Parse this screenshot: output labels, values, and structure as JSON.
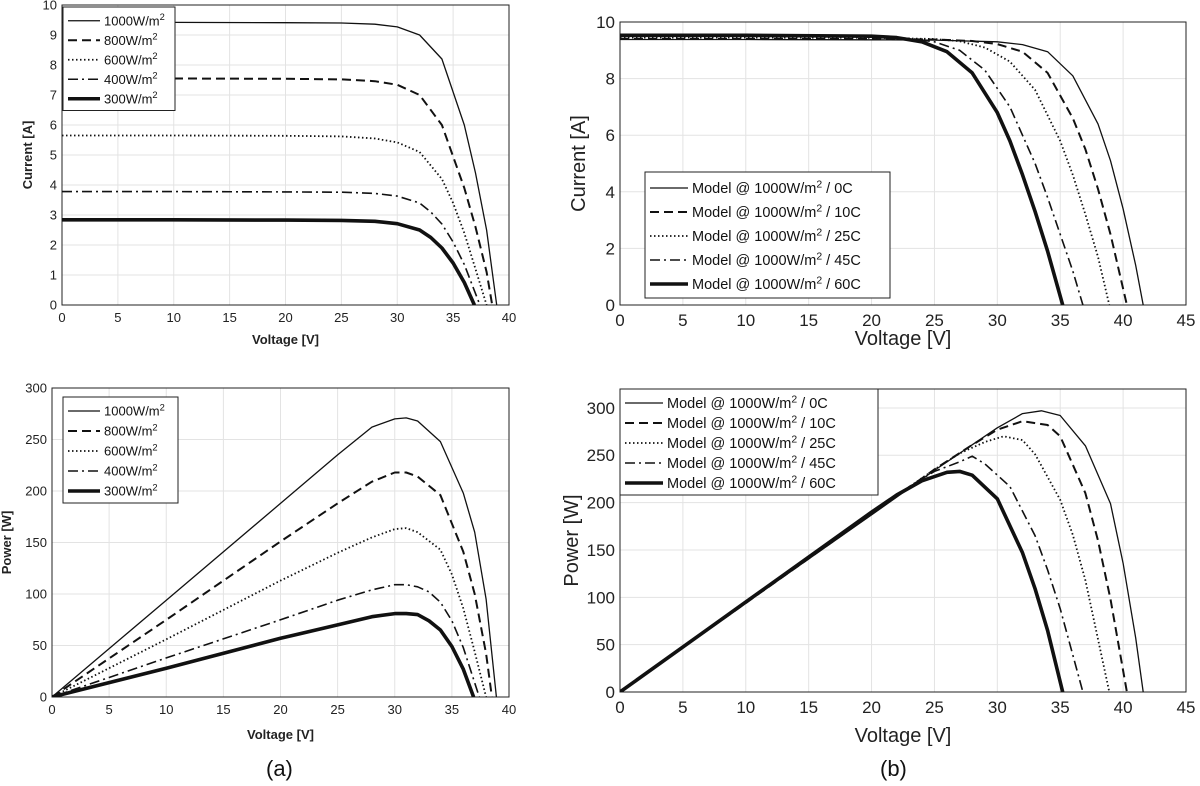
{
  "captions": {
    "a": "(a)",
    "b": "(b)"
  },
  "chart_data": [
    {
      "id": "a-current",
      "type": "line",
      "title": "",
      "xlabel": "Voltage [V]",
      "ylabel": "Current [A]",
      "xlim": [
        0,
        40
      ],
      "ylim": [
        0,
        10
      ],
      "xticks": [
        0,
        5,
        10,
        15,
        20,
        25,
        30,
        35,
        40
      ],
      "yticks": [
        0,
        1,
        2,
        3,
        4,
        5,
        6,
        7,
        8,
        9,
        10
      ],
      "grid": true,
      "legend_position": "top-left",
      "series": [
        {
          "name": "1000W/m2",
          "isc": 9.42,
          "voc": 38.9,
          "style": "solid",
          "x": [
            0,
            10,
            20,
            25,
            28,
            30,
            32,
            34,
            36,
            37,
            38,
            38.9
          ],
          "y": [
            9.42,
            9.42,
            9.41,
            9.4,
            9.36,
            9.27,
            9.0,
            8.2,
            6.0,
            4.4,
            2.5,
            0
          ]
        },
        {
          "name": "800W/m2",
          "isc": 7.55,
          "voc": 38.5,
          "style": "dashed",
          "x": [
            0,
            10,
            20,
            25,
            28,
            30,
            32,
            34,
            36,
            37,
            38,
            38.5
          ],
          "y": [
            7.55,
            7.55,
            7.54,
            7.52,
            7.46,
            7.34,
            7.0,
            6.0,
            3.9,
            2.6,
            1.1,
            0
          ]
        },
        {
          "name": "600W/m2",
          "isc": 5.65,
          "voc": 38.0,
          "style": "dotted",
          "x": [
            0,
            10,
            20,
            25,
            28,
            30,
            32,
            34,
            35,
            36,
            37,
            38.0
          ],
          "y": [
            5.65,
            5.65,
            5.64,
            5.62,
            5.55,
            5.42,
            5.1,
            4.2,
            3.4,
            2.4,
            1.2,
            0
          ]
        },
        {
          "name": "400W/m2",
          "isc": 3.78,
          "voc": 37.4,
          "style": "dashdot",
          "x": [
            0,
            10,
            20,
            25,
            28,
            30,
            32,
            33,
            34,
            35,
            36,
            37.4
          ],
          "y": [
            3.78,
            3.78,
            3.77,
            3.76,
            3.72,
            3.63,
            3.4,
            3.1,
            2.7,
            2.1,
            1.35,
            0
          ]
        },
        {
          "name": "300W/m2",
          "isc": 2.84,
          "voc": 36.9,
          "style": "thick",
          "x": [
            0,
            10,
            20,
            25,
            28,
            30,
            32,
            33,
            34,
            35,
            36,
            36.9
          ],
          "y": [
            2.84,
            2.84,
            2.83,
            2.82,
            2.79,
            2.71,
            2.5,
            2.25,
            1.9,
            1.4,
            0.75,
            0
          ]
        }
      ]
    },
    {
      "id": "b-current",
      "type": "line",
      "title": "",
      "xlabel": "Voltage [V]",
      "ylabel": "Current [A]",
      "xlim": [
        0,
        45
      ],
      "ylim": [
        0,
        10
      ],
      "xticks": [
        0,
        5,
        10,
        15,
        20,
        25,
        30,
        35,
        40,
        45
      ],
      "yticks": [
        0,
        2,
        4,
        6,
        8,
        10
      ],
      "grid": true,
      "legend_position": "center-left",
      "series": [
        {
          "name": "Model @ 1000W/m2 / 0C",
          "isc": 9.38,
          "voc": 41.6,
          "style": "solid",
          "x": [
            0,
            10,
            20,
            25,
            30,
            32,
            34,
            36,
            38,
            39,
            40,
            41,
            41.6
          ],
          "y": [
            9.38,
            9.38,
            9.37,
            9.36,
            9.3,
            9.2,
            8.95,
            8.1,
            6.4,
            5.1,
            3.4,
            1.4,
            0
          ]
        },
        {
          "name": "Model @ 1000W/m2 / 10C",
          "isc": 9.41,
          "voc": 40.3,
          "style": "dashed",
          "x": [
            0,
            10,
            20,
            25,
            28,
            30,
            32,
            34,
            36,
            37,
            38,
            39,
            40.3
          ],
          "y": [
            9.41,
            9.41,
            9.4,
            9.38,
            9.33,
            9.22,
            8.95,
            8.2,
            6.6,
            5.5,
            4.1,
            2.5,
            0
          ]
        },
        {
          "name": "Model @ 1000W/m2 / 25C",
          "isc": 9.45,
          "voc": 38.9,
          "style": "dotted",
          "x": [
            0,
            10,
            20,
            25,
            27,
            29,
            31,
            33,
            35,
            36,
            37,
            38,
            38.9
          ],
          "y": [
            9.45,
            9.45,
            9.44,
            9.4,
            9.32,
            9.1,
            8.6,
            7.6,
            5.8,
            4.6,
            3.2,
            1.7,
            0
          ]
        },
        {
          "name": "Model @ 1000W/m2 / 45C",
          "isc": 9.5,
          "voc": 36.8,
          "style": "dashdot",
          "x": [
            0,
            10,
            20,
            23,
            25,
            27,
            29,
            31,
            33,
            34,
            35,
            36,
            36.8
          ],
          "y": [
            9.5,
            9.5,
            9.48,
            9.42,
            9.3,
            9.0,
            8.3,
            7.0,
            5.0,
            3.8,
            2.5,
            1.2,
            0
          ]
        },
        {
          "name": "Model @ 1000W/m2 / 60C",
          "isc": 9.53,
          "voc": 35.2,
          "style": "thick",
          "x": [
            0,
            10,
            20,
            22,
            24,
            26,
            28,
            30,
            31,
            32,
            33,
            34,
            35.2
          ],
          "y": [
            9.53,
            9.53,
            9.5,
            9.45,
            9.3,
            8.95,
            8.2,
            6.8,
            5.8,
            4.6,
            3.3,
            1.9,
            0
          ]
        }
      ]
    },
    {
      "id": "a-power",
      "type": "line",
      "title": "",
      "xlabel": "Voltage [V]",
      "ylabel": "Power [W]",
      "xlim": [
        0,
        40
      ],
      "ylim": [
        0,
        300
      ],
      "xticks": [
        0,
        5,
        10,
        15,
        20,
        25,
        30,
        35,
        40
      ],
      "yticks": [
        0,
        50,
        100,
        150,
        200,
        250,
        300
      ],
      "grid": true,
      "legend_position": "top-left",
      "series": [
        {
          "name": "1000W/m2",
          "style": "solid",
          "x": [
            0,
            10,
            20,
            25,
            28,
            30,
            31,
            32,
            34,
            36,
            37,
            38,
            38.9
          ],
          "y": [
            0,
            94,
            188,
            235,
            262,
            270,
            271,
            268,
            248,
            198,
            160,
            95,
            0
          ]
        },
        {
          "name": "800W/m2",
          "style": "dashed",
          "x": [
            0,
            10,
            20,
            25,
            28,
            30,
            31,
            32,
            34,
            36,
            37,
            38,
            38.5
          ],
          "y": [
            0,
            75,
            151,
            188,
            209,
            218,
            218,
            214,
            196,
            141,
            100,
            42,
            0
          ]
        },
        {
          "name": "600W/m2",
          "style": "dotted",
          "x": [
            0,
            10,
            20,
            25,
            28,
            30,
            31,
            32,
            34,
            35,
            36,
            37,
            38.0
          ],
          "y": [
            0,
            56,
            113,
            140,
            155,
            163,
            164,
            160,
            143,
            119,
            86,
            44,
            0
          ]
        },
        {
          "name": "400W/m2",
          "style": "dashdot",
          "x": [
            0,
            10,
            20,
            25,
            28,
            30,
            31,
            32,
            33,
            34,
            35,
            36,
            37.4
          ],
          "y": [
            0,
            38,
            75,
            94,
            104,
            109,
            109,
            107,
            102,
            92,
            74,
            48,
            0
          ]
        },
        {
          "name": "300W/m2",
          "style": "thick",
          "x": [
            0,
            10,
            20,
            25,
            28,
            30,
            31,
            32,
            33,
            34,
            35,
            36,
            36.9
          ],
          "y": [
            0,
            28,
            57,
            70,
            78,
            81,
            81,
            80,
            74,
            65,
            49,
            27,
            0
          ]
        }
      ]
    },
    {
      "id": "b-power",
      "type": "line",
      "title": "",
      "xlabel": "Voltage [V]",
      "ylabel": "Power [W]",
      "xlim": [
        0,
        45
      ],
      "ylim": [
        0,
        320
      ],
      "xticks": [
        0,
        5,
        10,
        15,
        20,
        25,
        30,
        35,
        40,
        45
      ],
      "yticks": [
        0,
        50,
        100,
        150,
        200,
        250,
        300
      ],
      "grid": true,
      "legend_position": "top-left",
      "series": [
        {
          "name": "Model @ 1000W/m2 / 0C",
          "style": "solid",
          "x": [
            0,
            10,
            20,
            25,
            30,
            32,
            33.5,
            35,
            37,
            39,
            40,
            41,
            41.6
          ],
          "y": [
            0,
            94,
            187,
            234,
            279,
            294,
            297,
            292,
            260,
            199,
            136,
            57,
            0
          ]
        },
        {
          "name": "Model @ 1000W/m2 / 10C",
          "style": "dashed",
          "x": [
            0,
            10,
            20,
            25,
            28,
            30,
            32,
            34,
            35,
            37,
            38,
            39,
            40.3
          ],
          "y": [
            0,
            94,
            188,
            235,
            261,
            277,
            286,
            282,
            270,
            210,
            160,
            98,
            0
          ]
        },
        {
          "name": "Model @ 1000W/m2 / 25C",
          "style": "dotted",
          "x": [
            0,
            10,
            20,
            25,
            27,
            29,
            30.5,
            32,
            33,
            35,
            36,
            37,
            38.9
          ],
          "y": [
            0,
            95,
            189,
            235,
            252,
            264,
            270,
            266,
            251,
            203,
            166,
            118,
            0
          ]
        },
        {
          "name": "Model @ 1000W/m2 / 45C",
          "style": "dashdot",
          "x": [
            0,
            10,
            20,
            23,
            25,
            27,
            28,
            29,
            31,
            33,
            34,
            35,
            36.8
          ],
          "y": [
            0,
            95,
            190,
            217,
            233,
            243,
            249,
            241,
            217,
            165,
            129,
            88,
            0
          ]
        },
        {
          "name": "Model @ 1000W/m2 / 60C",
          "style": "thick",
          "x": [
            0,
            10,
            20,
            22,
            24,
            26,
            27,
            28,
            30,
            32,
            33,
            34,
            35.2
          ],
          "y": [
            0,
            95,
            190,
            208,
            223,
            232,
            233,
            229,
            204,
            147,
            109,
            65,
            0
          ]
        }
      ]
    }
  ]
}
